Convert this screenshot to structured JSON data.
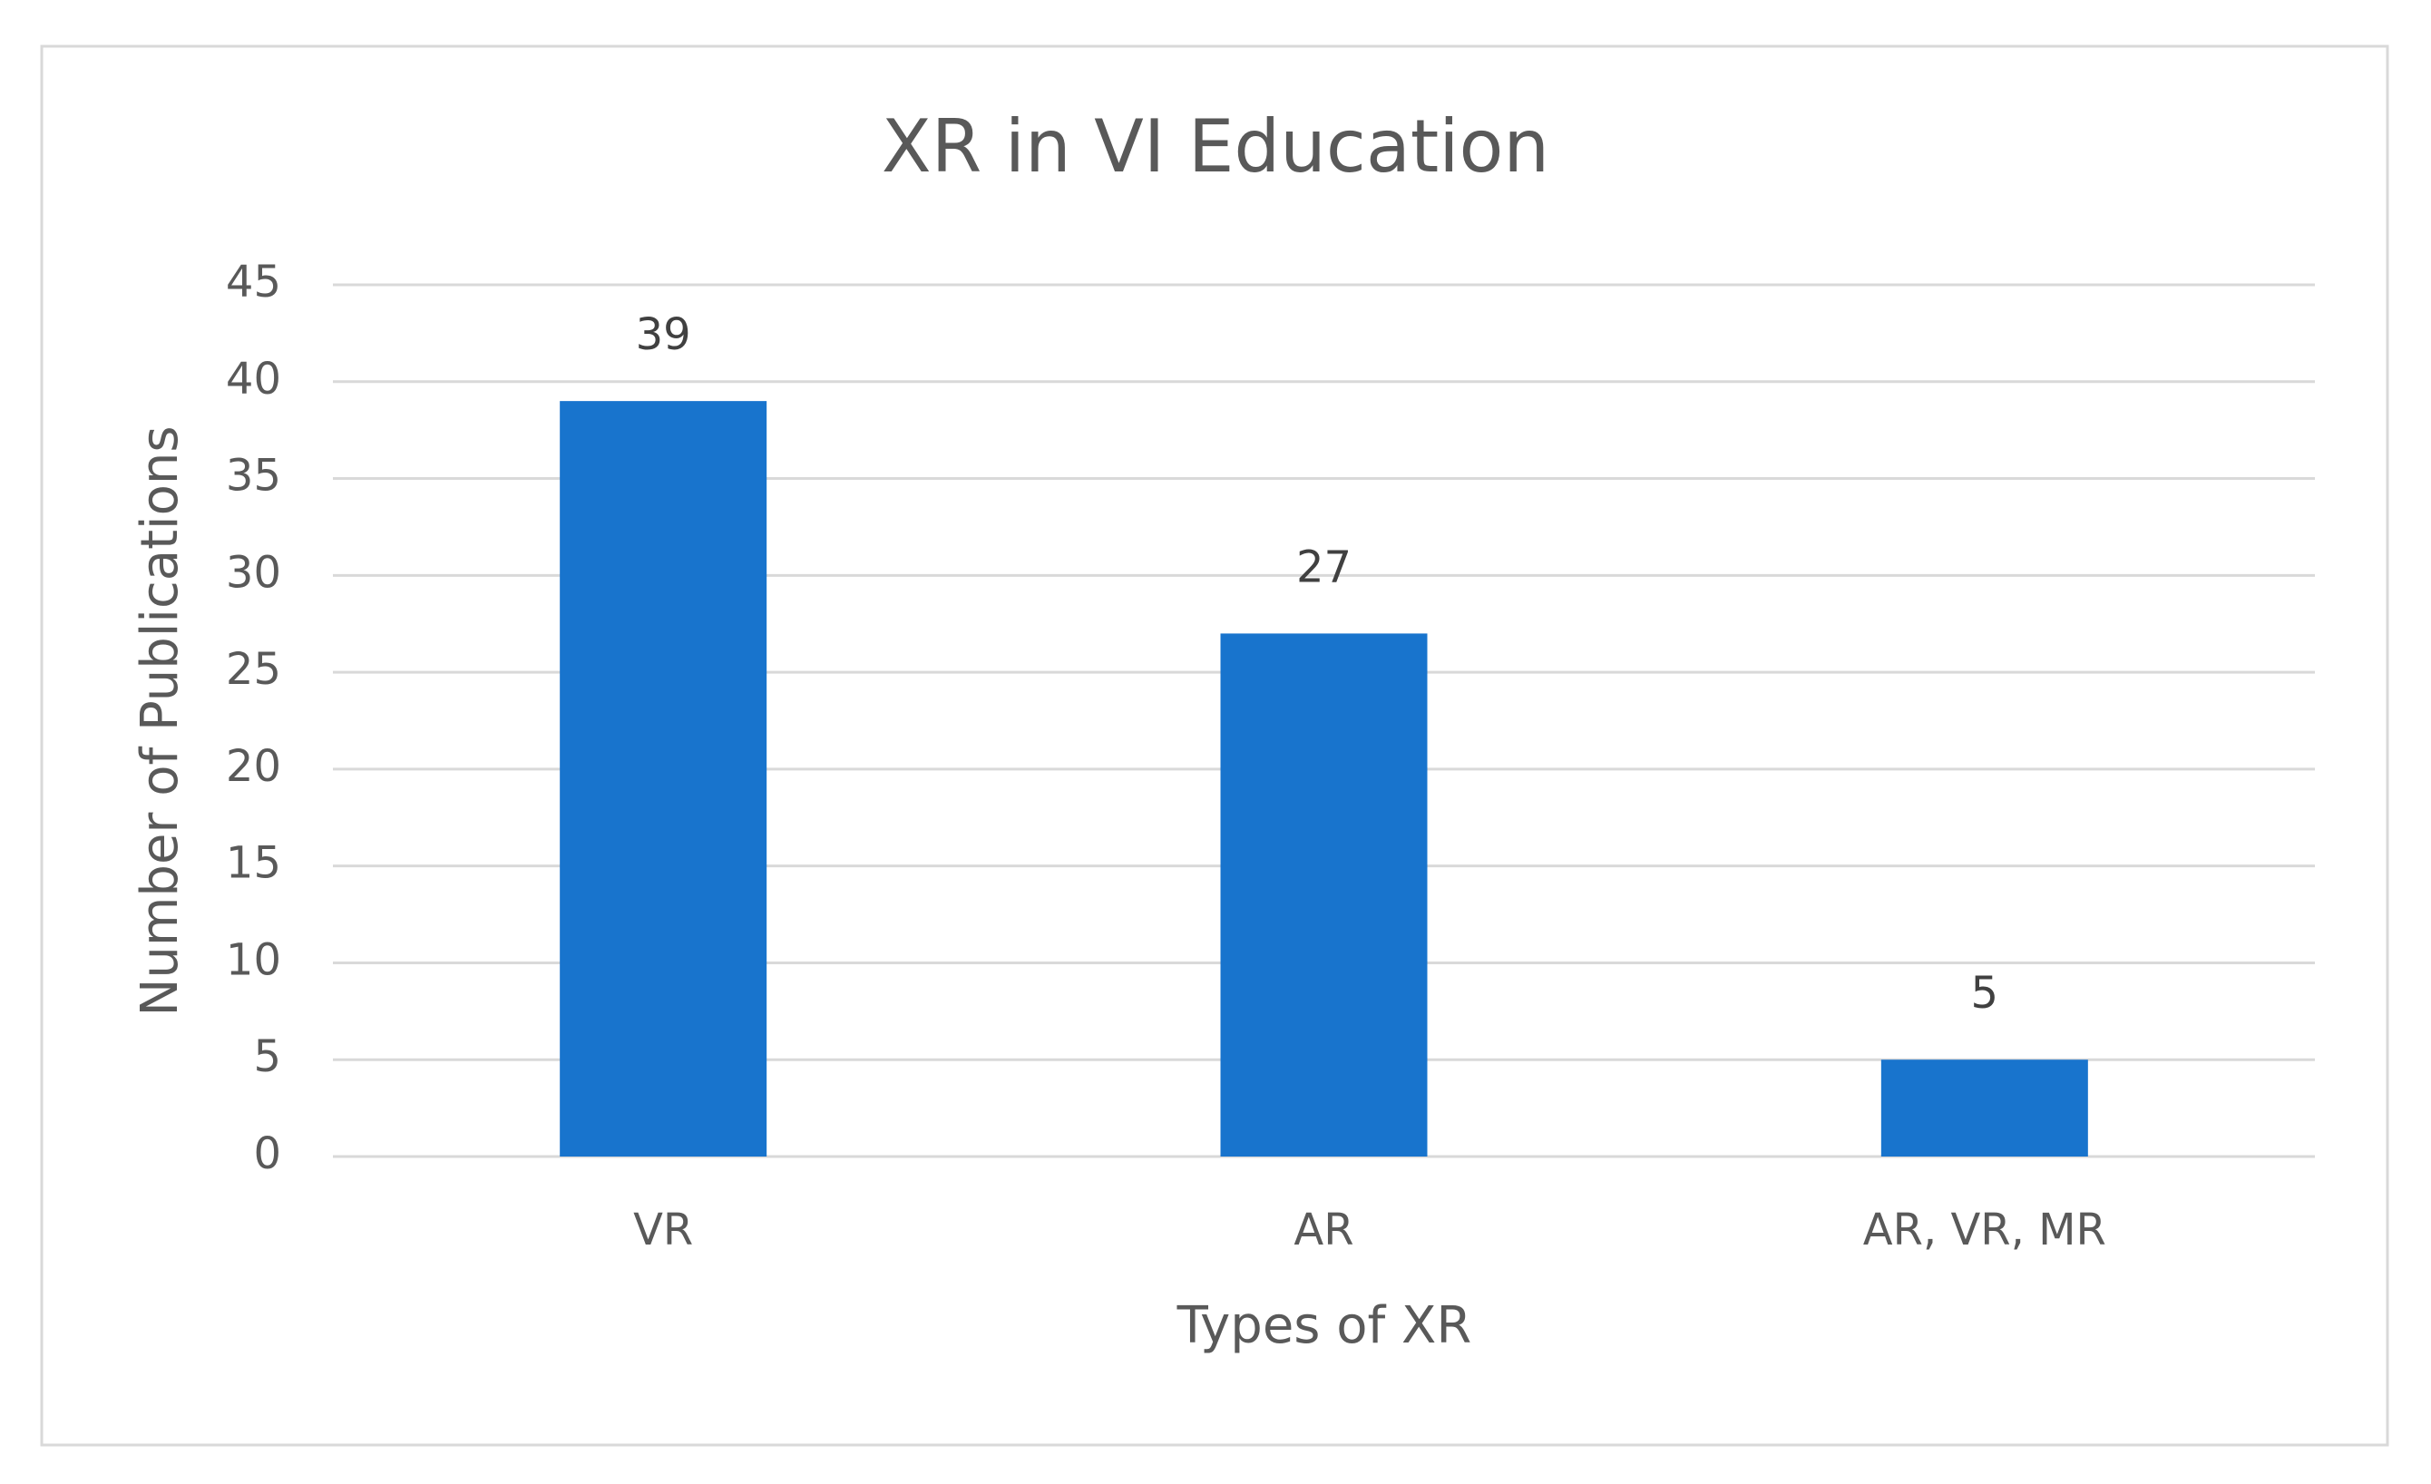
{
  "chart_data": {
    "type": "bar",
    "title": "XR in VI Education",
    "x_label": "Types of XR",
    "y_label": "Number of Publications",
    "categories": [
      "VR",
      "AR",
      "AR, VR, MR"
    ],
    "values": [
      39,
      27,
      5
    ],
    "color": "#1874cd",
    "ylim": [
      0,
      45
    ],
    "yticks": [
      0,
      5,
      10,
      15,
      20,
      25,
      30,
      35,
      40,
      45
    ],
    "grid": true
  }
}
